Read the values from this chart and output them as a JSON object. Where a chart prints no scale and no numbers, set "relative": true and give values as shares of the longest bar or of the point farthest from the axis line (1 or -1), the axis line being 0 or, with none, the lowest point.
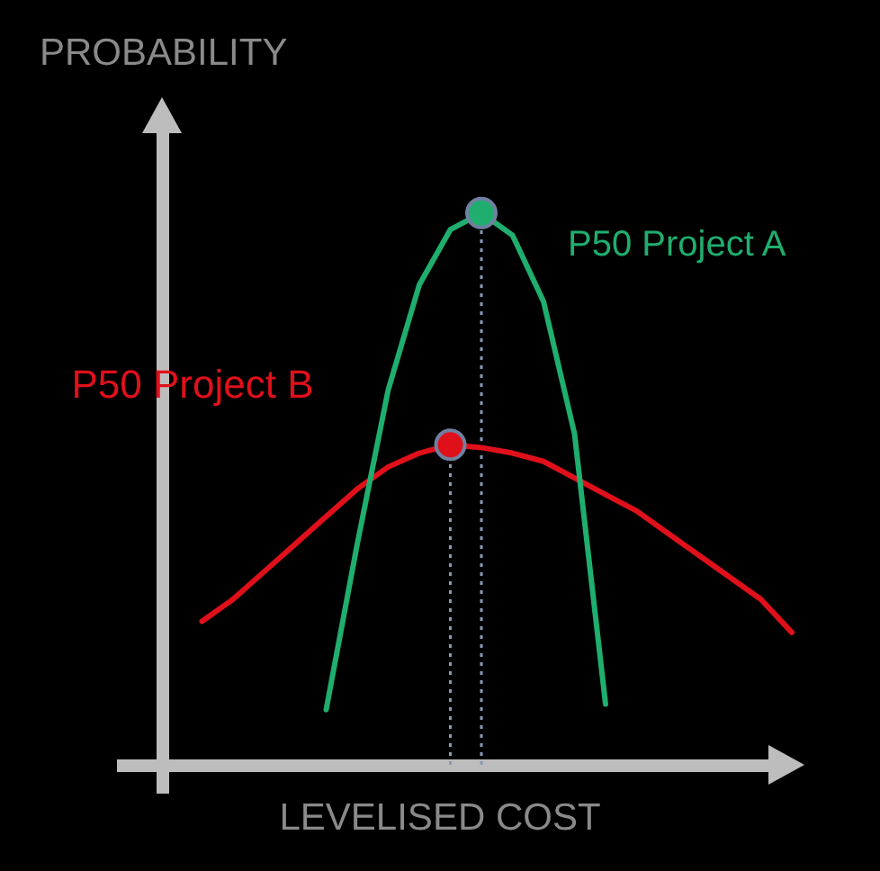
{
  "chart_data": {
    "type": "line",
    "relative": true,
    "xlabel": "LEVELISED COST",
    "ylabel": "PROBABILITY",
    "categories": [
      null,
      null,
      null,
      null,
      null,
      null,
      null,
      null,
      null,
      null,
      null,
      null,
      null,
      null,
      null,
      null,
      null,
      null,
      null,
      null,
      null
    ],
    "tick_labels": false,
    "legend": false,
    "line_style": "solid",
    "series": [
      {
        "name": "P50 Project A",
        "color": "#1fae6e",
        "values": [
          null,
          null,
          null,
          null,
          null,
          0.1,
          0.4,
          0.68,
          0.87,
          0.97,
          1,
          0.96,
          0.84,
          0.6,
          0.11,
          null,
          null,
          null,
          null,
          null,
          null
        ]
      },
      {
        "name": "P50 Project B",
        "color": "#e0101a",
        "values": [
          null,
          0.26,
          0.3,
          0.35,
          0.4,
          0.45,
          0.5,
          0.54,
          0.565,
          0.58,
          0.575,
          0.565,
          0.55,
          0.52,
          0.49,
          0.46,
          0.42,
          0.38,
          0.34,
          0.3,
          0.24
        ]
      }
    ]
  }
}
